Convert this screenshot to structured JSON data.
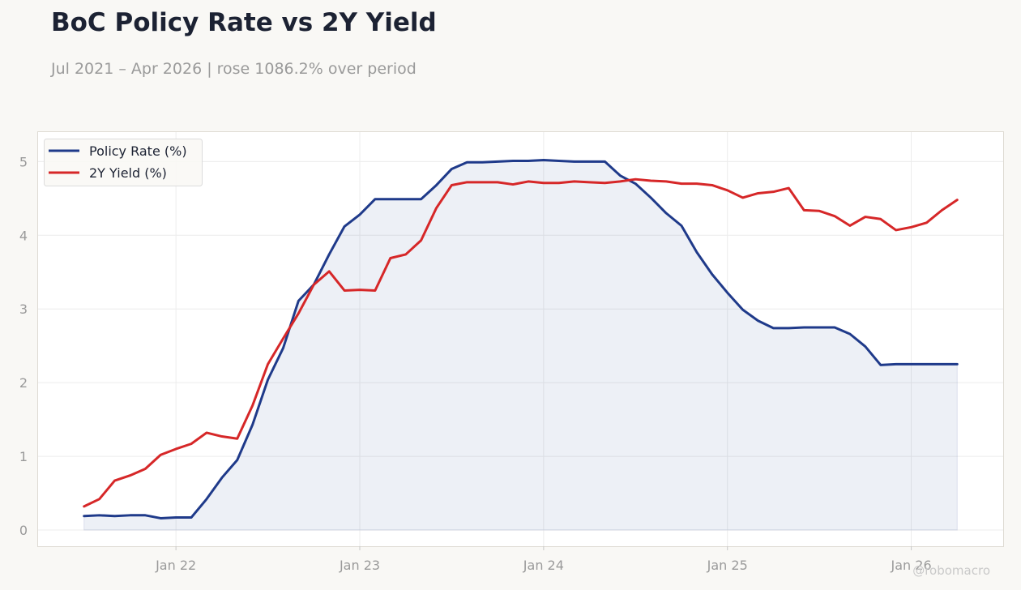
{
  "title": "BoC Policy Rate vs 2Y Yield",
  "subtitle": "Jul 2021 – Apr 2026 | rose 1086.2% over period",
  "watermark": "@robomacro",
  "chart_data": {
    "type": "line",
    "title": "BoC Policy Rate vs 2Y Yield",
    "subtitle": "Jul 2021 – Apr 2026 | rose 1086.2% over period",
    "x": [
      "2021-07",
      "2021-08",
      "2021-09",
      "2021-10",
      "2021-11",
      "2021-12",
      "2022-01",
      "2022-02",
      "2022-03",
      "2022-04",
      "2022-05",
      "2022-06",
      "2022-07",
      "2022-08",
      "2022-09",
      "2022-10",
      "2022-11",
      "2022-12",
      "2023-01",
      "2023-02",
      "2023-03",
      "2023-04",
      "2023-05",
      "2023-06",
      "2023-07",
      "2023-08",
      "2023-09",
      "2023-10",
      "2023-11",
      "2023-12",
      "2024-01",
      "2024-02",
      "2024-03",
      "2024-04",
      "2024-05",
      "2024-06",
      "2024-07",
      "2024-08",
      "2024-09",
      "2024-10",
      "2024-11",
      "2024-12",
      "2025-01",
      "2025-02",
      "2025-03",
      "2025-04",
      "2025-05",
      "2025-06",
      "2025-07",
      "2025-08",
      "2025-09",
      "2025-10",
      "2025-11",
      "2025-12",
      "2026-01",
      "2026-02",
      "2026-03",
      "2026-04"
    ],
    "series": [
      {
        "name": "Policy Rate (%)",
        "color": "#1f3a8a",
        "fill": true,
        "values": [
          0.19,
          0.2,
          0.19,
          0.2,
          0.2,
          0.16,
          0.17,
          0.17,
          0.42,
          0.71,
          0.95,
          1.43,
          2.04,
          2.47,
          3.11,
          3.33,
          3.74,
          4.12,
          4.28,
          4.49,
          4.49,
          4.49,
          4.49,
          4.68,
          4.9,
          4.99,
          4.99,
          5.0,
          5.01,
          5.01,
          5.02,
          5.01,
          5.0,
          5.0,
          5.0,
          4.81,
          4.7,
          4.51,
          4.3,
          4.13,
          3.77,
          3.47,
          3.22,
          2.99,
          2.84,
          2.74,
          2.74,
          2.75,
          2.75,
          2.75,
          2.66,
          2.49,
          2.24,
          2.25,
          2.25,
          2.25,
          2.25,
          2.25
        ]
      },
      {
        "name": "2Y Yield (%)",
        "color": "#d62728",
        "fill": false,
        "values": [
          0.32,
          0.42,
          0.67,
          0.74,
          0.83,
          1.02,
          1.1,
          1.17,
          1.32,
          1.27,
          1.24,
          1.69,
          2.25,
          2.6,
          2.94,
          3.33,
          3.51,
          3.25,
          3.26,
          3.25,
          3.69,
          3.74,
          3.93,
          4.37,
          4.68,
          4.72,
          4.72,
          4.72,
          4.69,
          4.73,
          4.71,
          4.71,
          4.73,
          4.72,
          4.71,
          4.73,
          4.76,
          4.74,
          4.73,
          4.7,
          4.7,
          4.68,
          4.61,
          4.51,
          4.57,
          4.59,
          4.64,
          4.34,
          4.33,
          4.26,
          4.13,
          4.25,
          4.22,
          4.07,
          4.11,
          4.17,
          4.34,
          4.48
        ]
      }
    ],
    "xticks": [
      {
        "date": "2022-01",
        "label": "Jan 22"
      },
      {
        "date": "2023-01",
        "label": "Jan 23"
      },
      {
        "date": "2024-01",
        "label": "Jan 24"
      },
      {
        "date": "2025-01",
        "label": "Jan 25"
      },
      {
        "date": "2026-01",
        "label": "Jan 26"
      }
    ],
    "yticks": [
      0,
      1,
      2,
      3,
      4,
      5
    ],
    "xlim": [
      "2021-04",
      "2026-07"
    ],
    "ylim": [
      -0.22,
      5.4
    ],
    "xlabel": "",
    "ylabel": "",
    "grid": true,
    "legend": "top-left"
  }
}
